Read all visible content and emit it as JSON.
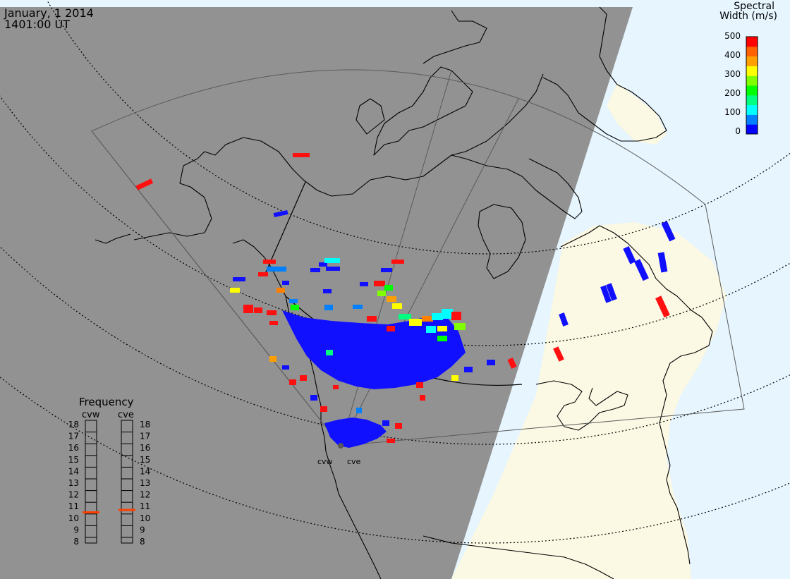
{
  "header": {
    "date": "January, 1 2014",
    "time": "1401:00 UT"
  },
  "colorbar": {
    "title_line1": "Spectral",
    "title_line2": "Width (m/s)",
    "ticks": [
      "500",
      "400",
      "300",
      "200",
      "100",
      "0"
    ],
    "colors": [
      "#0000ff",
      "#0080ff",
      "#00ffff",
      "#00ff80",
      "#00ff00",
      "#80ff00",
      "#ffff00",
      "#ffa000",
      "#ff6000",
      "#ff0000"
    ]
  },
  "radars": {
    "west": "cvw",
    "east": "cve"
  },
  "frequency": {
    "title": "Frequency",
    "ticks": [
      "18",
      "17",
      "16",
      "15",
      "14",
      "13",
      "12",
      "11",
      "10",
      "9",
      "8"
    ],
    "marker_color": "#ff4000",
    "cvw_value": 10.5,
    "cve_value": 10.7
  },
  "colors": {
    "night": "#929292",
    "day_land": "#fbf8e3",
    "ocean_day": "#e6f5fe",
    "coast": "#000000",
    "fov": "#5a5a5a"
  }
}
